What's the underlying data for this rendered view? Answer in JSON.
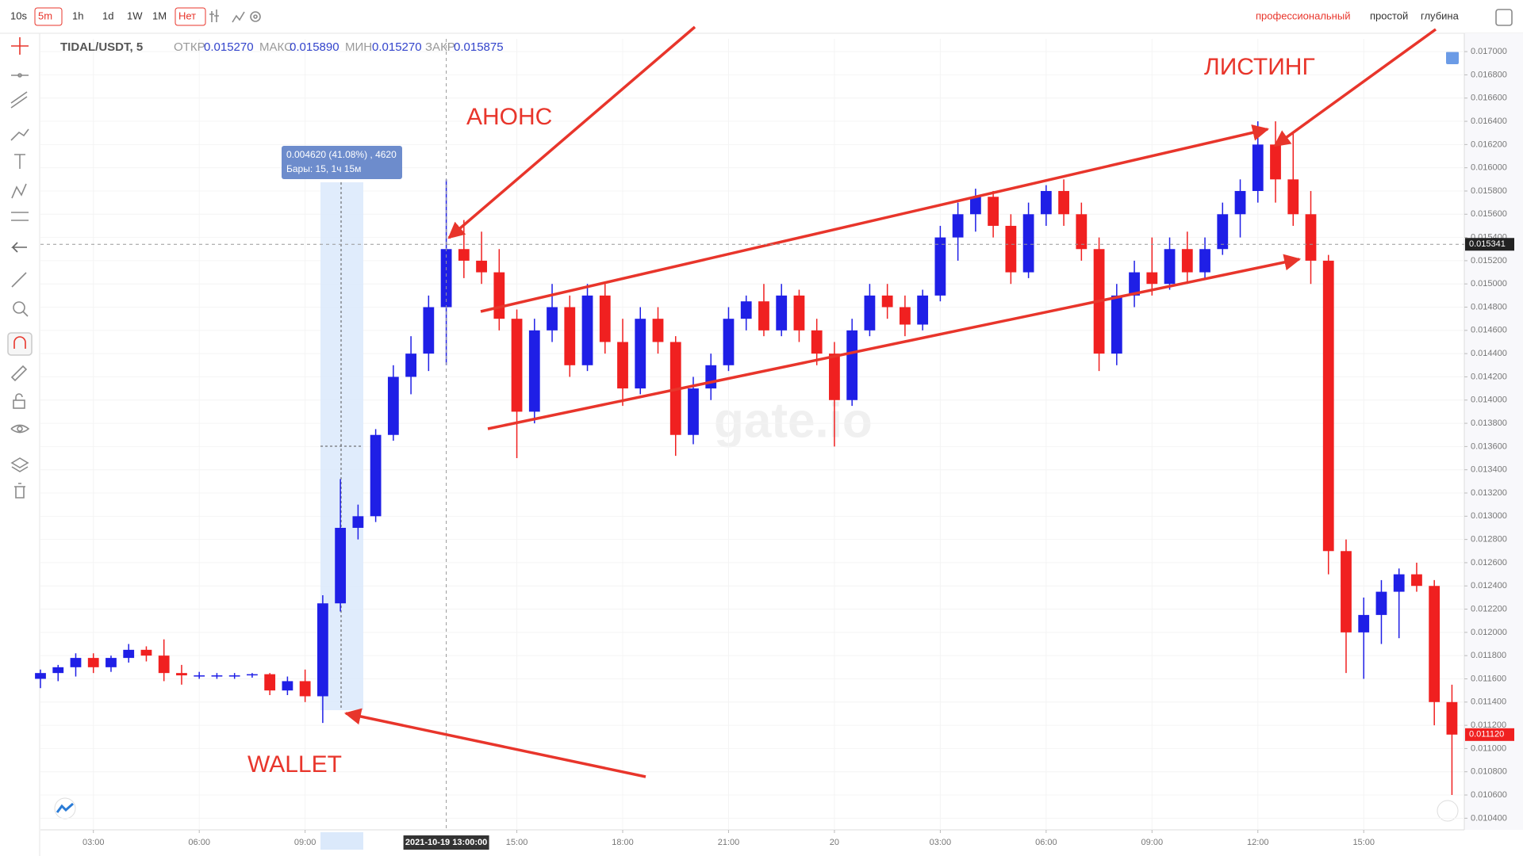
{
  "toolbar": {
    "intervals": [
      "10s",
      "5m",
      "1h",
      "1d",
      "1W",
      "1M"
    ],
    "chart_style": "Нет",
    "views": [
      "профессиональный",
      "простой",
      "глубина"
    ]
  },
  "header": {
    "symbol": "TIDAL/USDT, 5",
    "open_label": "ОТКР",
    "open": "0.015270",
    "high_label": "МАКС",
    "high": "0.015890",
    "low_label": "МИН",
    "low": "0.015270",
    "close_label": "ЗАКР",
    "close": "0.015875"
  },
  "measure": {
    "line1": "0.004620 (41.08%) , 4620",
    "line2": "Бары: 15, 1ч 15м"
  },
  "annotations": {
    "announce": "АНОНС",
    "listing": "ЛИСТИНГ",
    "wallet": "WALLET"
  },
  "watermark": "gate.io",
  "chart_data": {
    "type": "candlestick",
    "up_color": "#1f1fe6",
    "down_color": "#f02020",
    "grid": true,
    "xlim": [
      1.5,
      41.85
    ],
    "ylim": [
      0.0103,
      0.01711
    ],
    "xticks": [
      {
        "value": 3,
        "label": "03:00"
      },
      {
        "value": 6,
        "label": "06:00"
      },
      {
        "value": 9,
        "label": "09:00"
      },
      {
        "value": 15,
        "label": "15:00"
      },
      {
        "value": 18,
        "label": "18:00"
      },
      {
        "value": 21,
        "label": "21:00"
      },
      {
        "value": 24,
        "label": "20"
      },
      {
        "value": 27,
        "label": "03:00"
      },
      {
        "value": 30,
        "label": "06:00"
      },
      {
        "value": 33,
        "label": "09:00"
      },
      {
        "value": 36,
        "label": "12:00"
      },
      {
        "value": 39,
        "label": "15:00"
      }
    ],
    "yticks": [
      {
        "value": 0.0104,
        "label": "0.010400"
      },
      {
        "value": 0.0106,
        "label": "0.010600"
      },
      {
        "value": 0.0108,
        "label": "0.010800"
      },
      {
        "value": 0.011,
        "label": "0.011000"
      },
      {
        "value": 0.0112,
        "label": "0.011200"
      },
      {
        "value": 0.0114,
        "label": "0.011400"
      },
      {
        "value": 0.0116,
        "label": "0.011600"
      },
      {
        "value": 0.0118,
        "label": "0.011800"
      },
      {
        "value": 0.012,
        "label": "0.012000"
      },
      {
        "value": 0.0122,
        "label": "0.012200"
      },
      {
        "value": 0.0124,
        "label": "0.012400"
      },
      {
        "value": 0.0126,
        "label": "0.012600"
      },
      {
        "value": 0.0128,
        "label": "0.012800"
      },
      {
        "value": 0.013,
        "label": "0.013000"
      },
      {
        "value": 0.0132,
        "label": "0.013200"
      },
      {
        "value": 0.0134,
        "label": "0.013400"
      },
      {
        "value": 0.0136,
        "label": "0.013600"
      },
      {
        "value": 0.0138,
        "label": "0.013800"
      },
      {
        "value": 0.014,
        "label": "0.014000"
      },
      {
        "value": 0.0142,
        "label": "0.014200"
      },
      {
        "value": 0.0144,
        "label": "0.014400"
      },
      {
        "value": 0.0146,
        "label": "0.014600"
      },
      {
        "value": 0.0148,
        "label": "0.014800"
      },
      {
        "value": 0.015,
        "label": "0.015000"
      },
      {
        "value": 0.0152,
        "label": "0.015200"
      },
      {
        "value": 0.0154,
        "label": "0.015400"
      },
      {
        "value": 0.0156,
        "label": "0.015600"
      },
      {
        "value": 0.0158,
        "label": "0.015800"
      },
      {
        "value": 0.016,
        "label": "0.016000"
      },
      {
        "value": 0.0162,
        "label": "0.016200"
      },
      {
        "value": 0.0164,
        "label": "0.016400"
      },
      {
        "value": 0.0166,
        "label": "0.016600"
      },
      {
        "value": 0.0168,
        "label": "0.016800"
      },
      {
        "value": 0.017,
        "label": "0.017000"
      }
    ],
    "crosshair_price": 0.015341,
    "crosshair_time": {
      "value": 13,
      "label": "2021-10-19 13:00:00"
    },
    "last_price": {
      "value": 0.01112,
      "label": "0.011120"
    },
    "x": [
      1.5,
      2,
      2.5,
      3,
      3.5,
      4,
      4.5,
      5,
      5.5,
      6,
      6.5,
      7,
      7.5,
      8,
      8.5,
      9,
      9.5,
      10,
      10.5,
      11,
      11.5,
      12,
      12.5,
      13,
      13.5,
      14,
      14.5,
      15,
      15.5,
      16,
      16.5,
      17,
      17.5,
      18,
      18.5,
      19,
      19.5,
      20,
      20.5,
      21,
      21.5,
      22,
      22.5,
      23,
      23.5,
      24,
      24.5,
      25,
      25.5,
      26,
      26.5,
      27,
      27.5,
      28,
      28.5,
      29,
      29.5,
      30,
      30.5,
      31,
      31.5,
      32,
      32.5,
      33,
      33.5,
      34,
      34.5,
      35,
      35.5,
      36,
      36.5,
      37,
      37.5,
      38,
      38.5,
      39,
      39.5,
      40,
      40.5,
      41,
      41.5
    ],
    "open": [
      0.0116,
      0.01165,
      0.0117,
      0.01178,
      0.0117,
      0.01178,
      0.01185,
      0.0118,
      0.01165,
      0.01163,
      0.01163,
      0.01163,
      0.01163,
      0.01164,
      0.0115,
      0.01158,
      0.01145,
      0.01225,
      0.0129,
      0.013,
      0.0137,
      0.0142,
      0.0144,
      0.0148,
      0.0153,
      0.0152,
      0.0151,
      0.0147,
      0.0139,
      0.0146,
      0.0148,
      0.0143,
      0.0149,
      0.0145,
      0.0141,
      0.0147,
      0.0145,
      0.0137,
      0.0141,
      0.0143,
      0.0147,
      0.01485,
      0.0146,
      0.0149,
      0.0146,
      0.0144,
      0.014,
      0.0146,
      0.0149,
      0.0148,
      0.01465,
      0.0149,
      0.0154,
      0.0156,
      0.01575,
      0.0155,
      0.0151,
      0.0156,
      0.0158,
      0.0156,
      0.0153,
      0.0144,
      0.0149,
      0.0151,
      0.015,
      0.0153,
      0.0151,
      0.0153,
      0.0156,
      0.0158,
      0.0162,
      0.0159,
      0.0156,
      0.0152,
      0.0127,
      0.012,
      0.01215,
      0.01235,
      0.0125,
      0.0124,
      0.0114
    ],
    "high": [
      0.01168,
      0.01172,
      0.01182,
      0.01182,
      0.0118,
      0.0119,
      0.01188,
      0.01194,
      0.01172,
      0.01166,
      0.01165,
      0.01165,
      0.01165,
      0.01165,
      0.01162,
      0.01168,
      0.01232,
      0.01332,
      0.0131,
      0.01375,
      0.0143,
      0.01455,
      0.0149,
      0.0159,
      0.01555,
      0.01545,
      0.0153,
      0.01478,
      0.0147,
      0.015,
      0.0149,
      0.015,
      0.015,
      0.0147,
      0.0148,
      0.0148,
      0.01455,
      0.0142,
      0.0144,
      0.0148,
      0.0149,
      0.015,
      0.015,
      0.01495,
      0.0147,
      0.0145,
      0.0147,
      0.015,
      0.015,
      0.0149,
      0.01495,
      0.0155,
      0.0157,
      0.01582,
      0.0158,
      0.0156,
      0.0157,
      0.01585,
      0.0159,
      0.0157,
      0.0154,
      0.015,
      0.0152,
      0.0154,
      0.0154,
      0.01545,
      0.0154,
      0.0157,
      0.0159,
      0.0164,
      0.0164,
      0.0163,
      0.0158,
      0.01525,
      0.0128,
      0.0123,
      0.01245,
      0.01255,
      0.0126,
      0.01245,
      0.01155
    ],
    "low": [
      0.01152,
      0.01158,
      0.01162,
      0.01165,
      0.01166,
      0.01174,
      0.01175,
      0.01158,
      0.01155,
      0.0116,
      0.0116,
      0.0116,
      0.01161,
      0.01146,
      0.01146,
      0.0114,
      0.01122,
      0.01218,
      0.0128,
      0.01295,
      0.01365,
      0.01405,
      0.01425,
      0.0143,
      0.01505,
      0.015,
      0.0146,
      0.0135,
      0.0138,
      0.0145,
      0.0142,
      0.01425,
      0.0144,
      0.01395,
      0.01405,
      0.0144,
      0.01352,
      0.01362,
      0.014,
      0.01425,
      0.0146,
      0.01455,
      0.01455,
      0.0145,
      0.0143,
      0.0136,
      0.01395,
      0.01455,
      0.0147,
      0.01455,
      0.0146,
      0.01485,
      0.0152,
      0.01545,
      0.0154,
      0.015,
      0.01505,
      0.0155,
      0.0155,
      0.0152,
      0.01425,
      0.0143,
      0.0148,
      0.0149,
      0.01495,
      0.015,
      0.01505,
      0.01525,
      0.0154,
      0.0157,
      0.0157,
      0.0155,
      0.015,
      0.0125,
      0.01165,
      0.0116,
      0.0119,
      0.01195,
      0.01235,
      0.0112,
      0.0106
    ],
    "close": [
      0.01165,
      0.0117,
      0.01178,
      0.0117,
      0.01178,
      0.01185,
      0.0118,
      0.01165,
      0.01163,
      0.01163,
      0.01163,
      0.01163,
      0.01164,
      0.0115,
      0.01158,
      0.01145,
      0.01225,
      0.0129,
      0.013,
      0.0137,
      0.0142,
      0.0144,
      0.0148,
      0.0153,
      0.0152,
      0.0151,
      0.0147,
      0.0139,
      0.0146,
      0.0148,
      0.0143,
      0.0149,
      0.0145,
      0.0141,
      0.0147,
      0.0145,
      0.0137,
      0.0141,
      0.0143,
      0.0147,
      0.01485,
      0.0146,
      0.0149,
      0.0146,
      0.0144,
      0.014,
      0.0146,
      0.0149,
      0.0148,
      0.01465,
      0.0149,
      0.0154,
      0.0156,
      0.01575,
      0.0155,
      0.0151,
      0.0156,
      0.0158,
      0.0156,
      0.0153,
      0.0144,
      0.0149,
      0.0151,
      0.015,
      0.0153,
      0.0151,
      0.0153,
      0.0156,
      0.0158,
      0.0162,
      0.0159,
      0.0156,
      0.0152,
      0.0127,
      0.012,
      0.01215,
      0.01235,
      0.0125,
      0.0124,
      0.0114,
      0.01112
    ]
  }
}
